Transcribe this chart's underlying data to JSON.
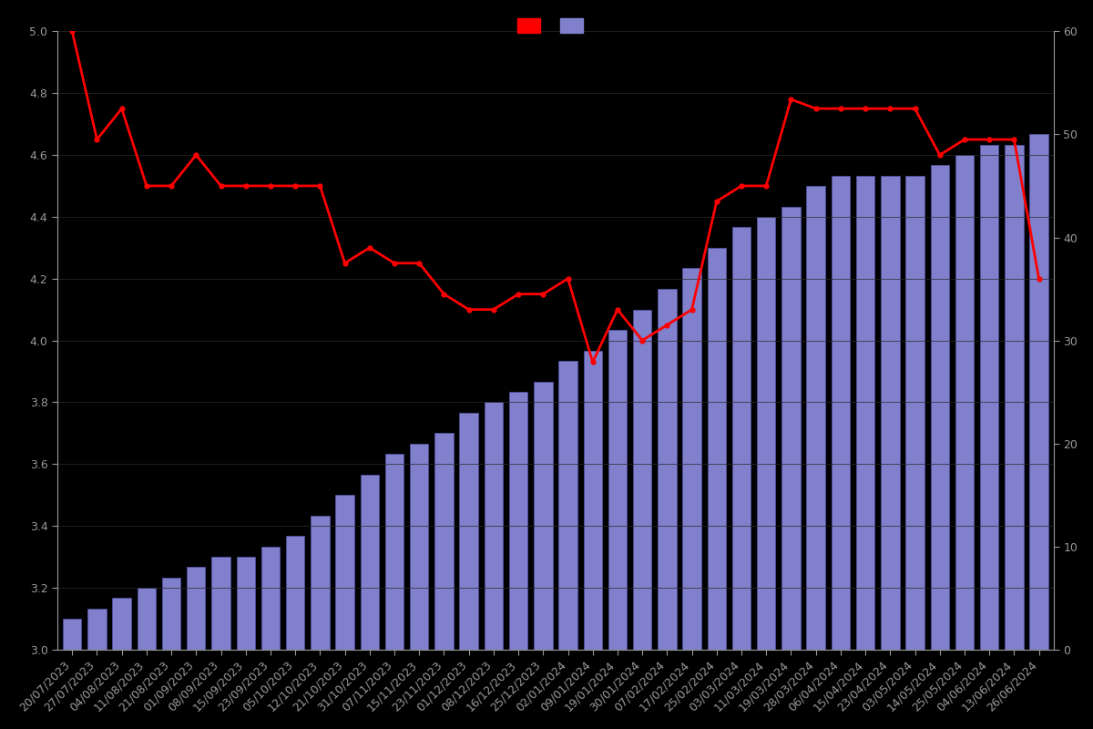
{
  "dates": [
    "20/07/2023",
    "27/07/2023",
    "04/08/2023",
    "11/08/2023",
    "21/08/2023",
    "01/09/2023",
    "08/09/2023",
    "15/09/2023",
    "23/09/2023",
    "05/10/2023",
    "12/10/2023",
    "21/10/2023",
    "31/10/2023",
    "07/11/2023",
    "15/11/2023",
    "23/11/2023",
    "01/12/2023",
    "08/12/2023",
    "16/12/2023",
    "25/12/2023",
    "02/01/2024",
    "09/01/2024",
    "19/01/2024",
    "30/01/2024",
    "07/02/2024",
    "17/02/2024",
    "25/02/2024",
    "03/03/2024",
    "11/03/2024",
    "19/03/2024",
    "28/03/2024",
    "06/04/2024",
    "15/04/2024",
    "23/04/2024",
    "03/05/2024",
    "14/05/2024",
    "25/05/2024",
    "04/06/2024",
    "13/06/2024",
    "26/06/2024"
  ],
  "ratings": [
    5.0,
    4.65,
    4.75,
    4.5,
    4.5,
    4.6,
    4.5,
    4.5,
    4.5,
    4.5,
    4.5,
    4.25,
    4.3,
    4.25,
    4.25,
    4.15,
    4.1,
    4.1,
    4.15,
    4.15,
    4.2,
    3.93,
    4.1,
    4.0,
    4.05,
    4.1,
    4.45,
    4.5,
    4.5,
    4.78,
    4.75,
    4.75,
    4.75,
    4.75,
    4.75,
    4.6,
    4.65,
    4.65,
    4.65,
    4.2
  ],
  "counts": [
    3,
    4,
    5,
    6,
    7,
    8,
    9,
    9,
    10,
    11,
    13,
    15,
    17,
    19,
    20,
    21,
    23,
    24,
    25,
    26,
    28,
    29,
    31,
    33,
    35,
    37,
    39,
    41,
    42,
    43,
    45,
    46,
    46,
    46,
    46,
    47,
    48,
    49,
    49,
    50
  ],
  "background_color": "#000000",
  "bar_color": "#8080cc",
  "bar_edge_color": "#5555aa",
  "line_color": "#ff0000",
  "line_width": 2.0,
  "marker": "o",
  "marker_size": 3.5,
  "left_ylim": [
    3.0,
    5.0
  ],
  "right_ylim": [
    0,
    60
  ],
  "left_yticks": [
    3.0,
    3.2,
    3.4,
    3.6,
    3.8,
    4.0,
    4.2,
    4.4,
    4.6,
    4.8,
    5.0
  ],
  "right_yticks": [
    0,
    10,
    20,
    30,
    40,
    50,
    60
  ],
  "text_color": "#999999",
  "grid_color": "#2a2a2a",
  "tick_fontsize": 9,
  "legend_fontsize": 10
}
